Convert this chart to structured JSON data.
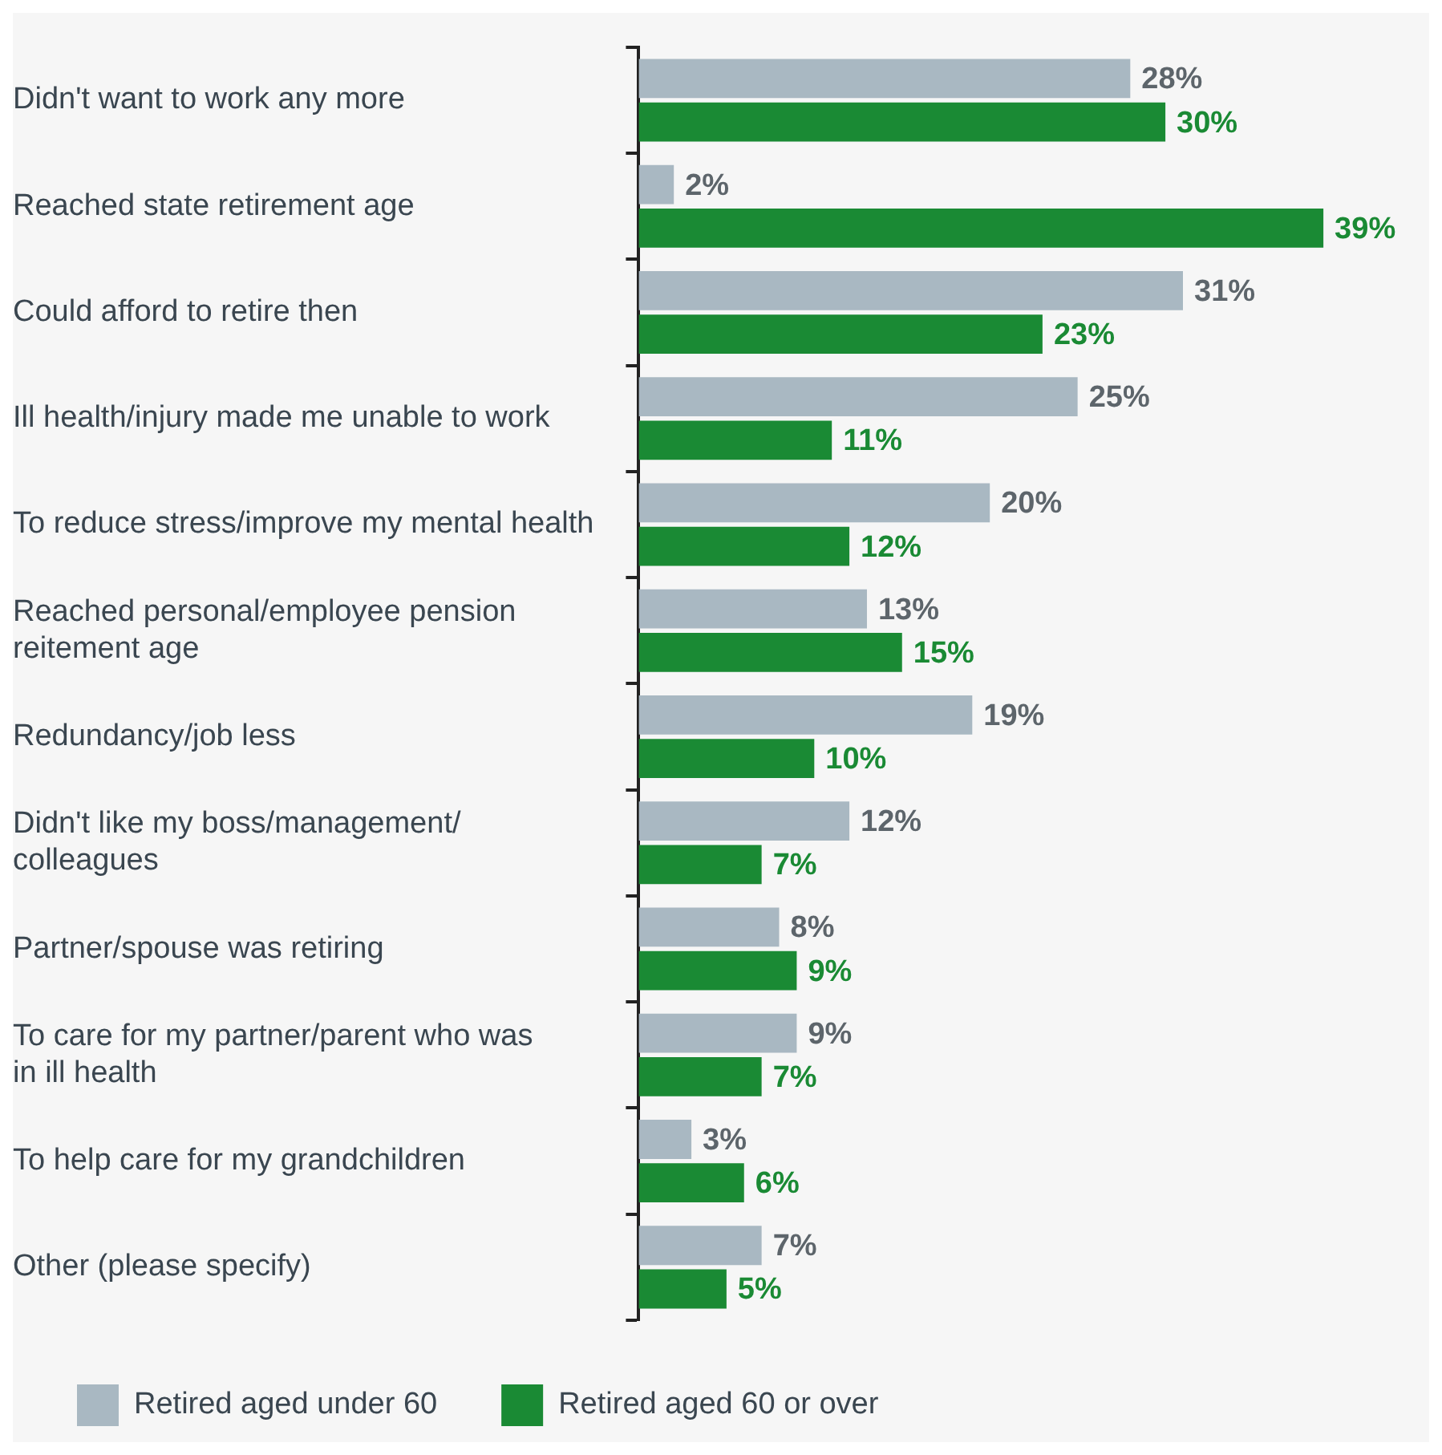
{
  "chart_data": {
    "type": "bar",
    "orientation": "horizontal",
    "categories": [
      "Didn't want to work any more",
      "Reached state retirement age",
      "Could afford to retire then",
      "Ill health/injury made me unable to work",
      "To reduce stress/improve my mental health",
      "Reached personal/employee pension\nreitement age",
      "Redundancy/job less",
      "Didn't like my boss/management/\ncolleagues",
      "Partner/spouse was retiring",
      "To care for my partner/parent who was\nin ill health",
      "To help care for my grandchildren",
      "Other (please specify)"
    ],
    "series": [
      {
        "name": "Retired aged under 60",
        "color": "#a9b8c2",
        "values": [
          28,
          2,
          31,
          25,
          20,
          13,
          19,
          12,
          8,
          9,
          3,
          7
        ],
        "value_labels": [
          "28%",
          "2%",
          "31%",
          "25%",
          "20%",
          "13%",
          "19%",
          "12%",
          "8%",
          "9%",
          "3%",
          "7%"
        ]
      },
      {
        "name": "Retired aged 60 or over",
        "color": "#1a8a34",
        "values": [
          30,
          39,
          23,
          11,
          12,
          15,
          10,
          7,
          9,
          7,
          6,
          5
        ],
        "value_labels": [
          "30%",
          "39%",
          "23%",
          "11%",
          "12%",
          "15%",
          "10%",
          "7%",
          "9%",
          "7%",
          "6%",
          "5%"
        ]
      }
    ],
    "legend": "bottom left",
    "grid": false
  }
}
